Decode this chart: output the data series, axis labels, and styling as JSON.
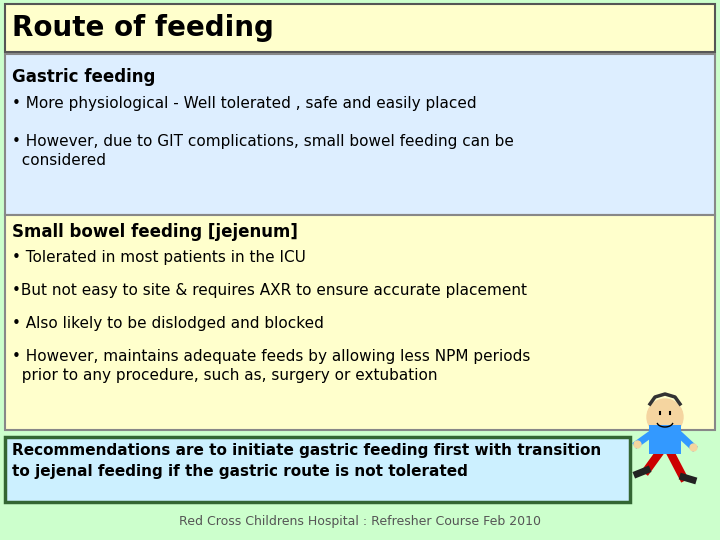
{
  "title": "Route of feeding",
  "title_bg": "#ffffcc",
  "title_color": "#000000",
  "title_fontsize": 20,
  "slide_bg": "#ccffcc",
  "gastric_header": "Gastric feeding",
  "gastric_bg": "#ddeeff",
  "gastric_bullets": [
    "• More physiological - Well tolerated , safe and easily placed",
    "• However, due to GIT complications, small bowel feeding can be\n  considered"
  ],
  "small_bowel_header": "Small bowel feeding [jejenum]",
  "small_bowel_bg": "#ffffcc",
  "small_bowel_bullets": [
    "• Tolerated in most patients in the ICU",
    "•But not easy to site & requires AXR to ensure accurate placement",
    "• Also likely to be dislodged and blocked",
    "• However, maintains adequate feeds by allowing less NPM periods\n  prior to any procedure, such as, surgery or extubation"
  ],
  "recommendation_text": "Recommendations are to initiate gastric feeding first with transition\nto jejenal feeding if the gastric route is not tolerated",
  "recommendation_bg": "#ccf0ff",
  "recommendation_border": "#336633",
  "footer": "Red Cross Childrens Hospital : Refresher Course Feb 2010",
  "footer_color": "#555555",
  "footer_fontsize": 9,
  "body_fontsize": 11,
  "header_fontsize": 12,
  "rec_fontsize": 11
}
